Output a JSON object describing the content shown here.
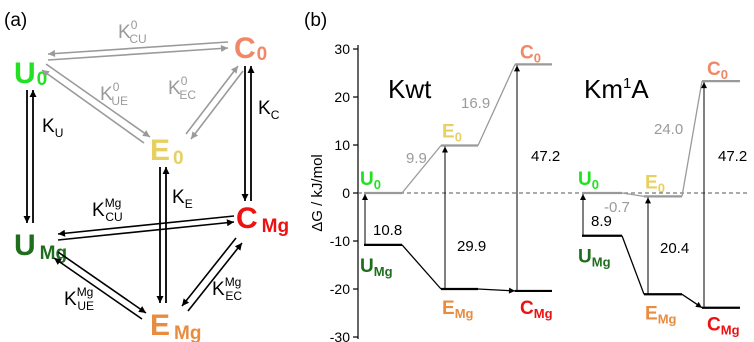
{
  "colors": {
    "u0": "#22e022",
    "c0": "#f08868",
    "e0": "#e8d060",
    "umg": "#1e6e1e",
    "cmg": "#ee1111",
    "emg": "#e88c40",
    "gray": "#9a9a9a",
    "black": "#000000"
  },
  "panel_a": {
    "label": "(a)",
    "states": {
      "u0": {
        "main": "U",
        "sub": "0"
      },
      "c0": {
        "main": "C",
        "sub": "0"
      },
      "e0": {
        "main": "E",
        "sub": "0"
      },
      "umg": {
        "main": "U",
        "sub": "Mg"
      },
      "cmg": {
        "main": "C",
        "sub": "Mg"
      },
      "emg": {
        "main": "E",
        "sub": "Mg"
      }
    },
    "constants": {
      "kcu0": {
        "k": "K",
        "sup": "0",
        "sub": "CU"
      },
      "kue0": {
        "k": "K",
        "sup": "0",
        "sub": "UE"
      },
      "kec0": {
        "k": "K",
        "sup": "0",
        "sub": "EC"
      },
      "ku": {
        "k": "K",
        "sub": "U"
      },
      "kc": {
        "k": "K",
        "sub": "C"
      },
      "ke": {
        "k": "K",
        "sub": "E"
      },
      "kcumg": {
        "k": "K",
        "sup": "Mg",
        "sub": "CU"
      },
      "kuemg": {
        "k": "K",
        "sup": "Mg",
        "sub": "UE"
      },
      "kecmg": {
        "k": "K",
        "sup": "Mg",
        "sub": "EC"
      }
    }
  },
  "panel_b": {
    "label": "(b)",
    "ylabel": "ΔG / kJ/mol",
    "ylim": [
      -30,
      30
    ],
    "yticks": [
      30,
      20,
      10,
      0,
      -10,
      -20,
      -30
    ],
    "titles": {
      "kwt": "Kwt",
      "km_pre": "Km",
      "km_sup": "1",
      "km_post": "A"
    }
  },
  "chart_data": {
    "type": "energy-level diagram",
    "ylabel": "ΔG / kJ/mol",
    "ylim": [
      -30,
      30
    ],
    "yticks": [
      30,
      20,
      10,
      0,
      -10,
      -20,
      -30
    ],
    "series": [
      {
        "name": "Kwt",
        "levels": [
          {
            "state": "U0",
            "value": 0
          },
          {
            "state": "E0",
            "value": 9.9
          },
          {
            "state": "C0",
            "value": 26.8
          },
          {
            "state": "UMg",
            "value": -10.8
          },
          {
            "state": "EMg",
            "value": -20.0
          },
          {
            "state": "CMg",
            "value": -20.4
          }
        ],
        "annotations": {
          "u0_e0": "9.9",
          "e0_c0": "16.9",
          "umg_u0": "10.8",
          "emg_e0": "29.9",
          "cmg_c0": "47.2"
        }
      },
      {
        "name": "Km1A",
        "levels": [
          {
            "state": "U0",
            "value": 0
          },
          {
            "state": "E0",
            "value": -0.7
          },
          {
            "state": "C0",
            "value": 23.3
          },
          {
            "state": "UMg",
            "value": -8.9
          },
          {
            "state": "EMg",
            "value": -21.1
          },
          {
            "state": "CMg",
            "value": -23.9
          }
        ],
        "annotations": {
          "u0_e0": "-0.7",
          "e0_c0": "24.0",
          "umg_u0": "8.9",
          "emg_e0": "20.4",
          "cmg_c0": "47.2"
        }
      }
    ]
  }
}
